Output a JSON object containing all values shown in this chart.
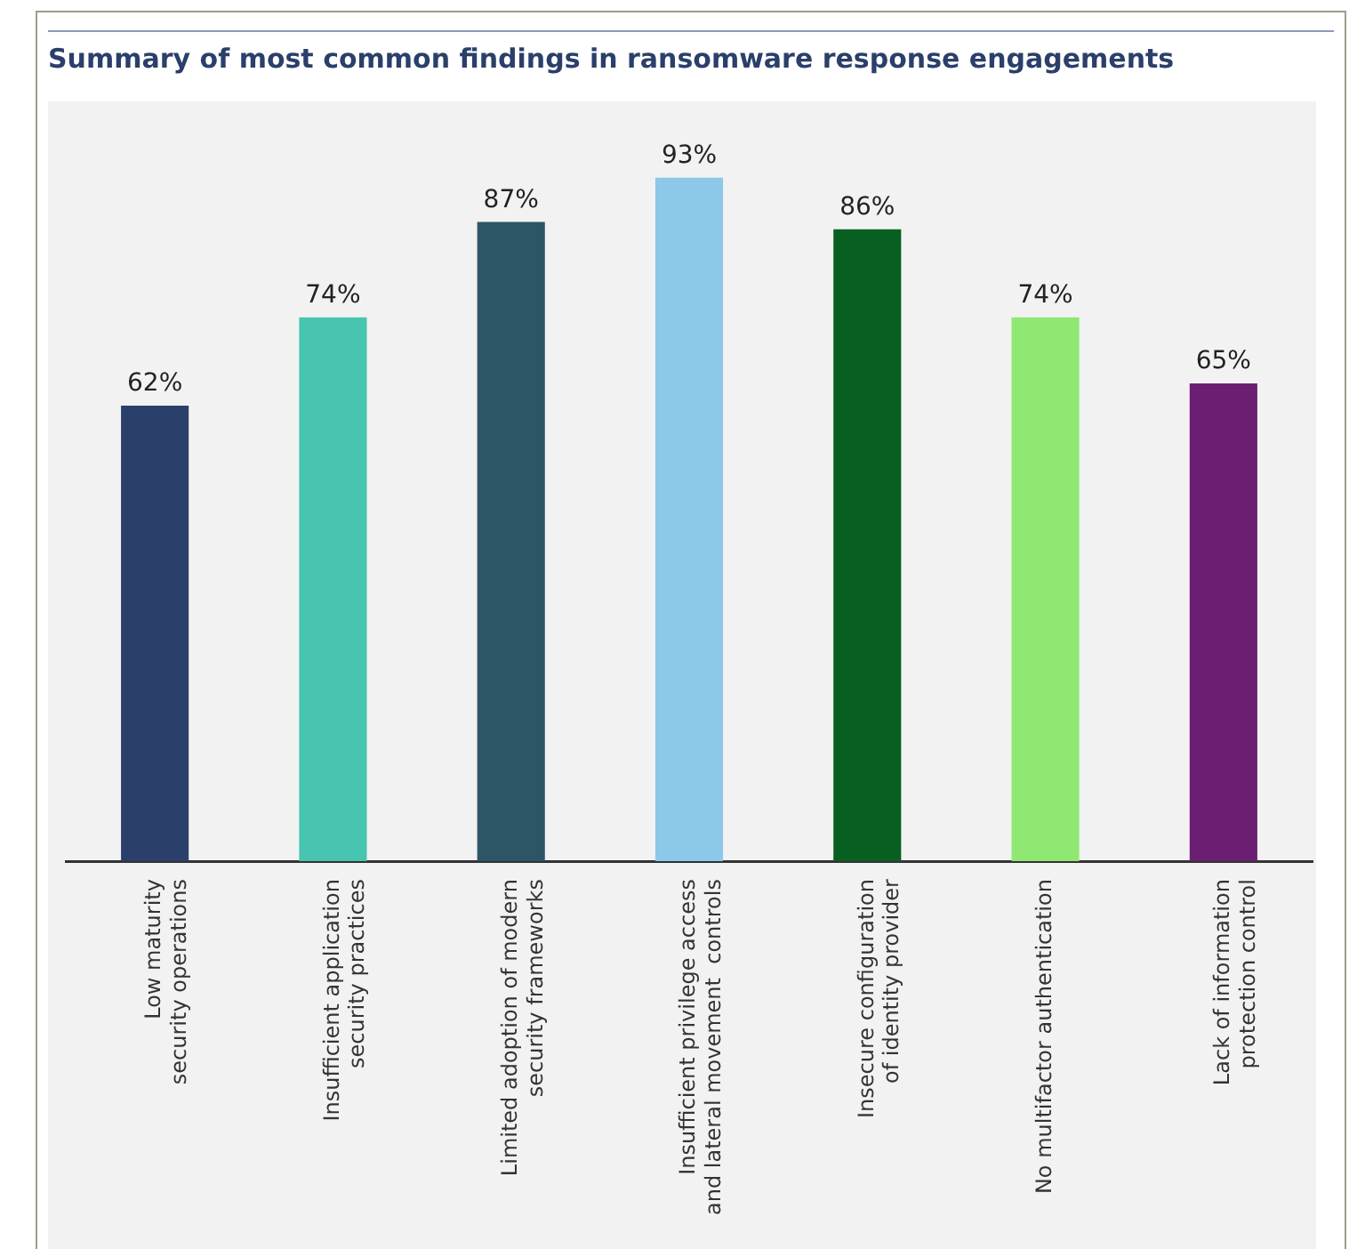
{
  "chart_data": {
    "type": "bar",
    "title": "Summary of most common findings in ransomware response engagements",
    "categories": [
      "Low maturity\nsecurity operations",
      "Insufficient application\nsecurity practices",
      "Limited adoption of modern\nsecurity frameworks",
      "Insufficient privilege access\nand lateral movement  controls",
      "Insecure configuration\nof identity provider",
      "No multifactor authentication",
      "Lack of information\nprotection control"
    ],
    "values": [
      62,
      74,
      87,
      93,
      86,
      74,
      65
    ],
    "colors": [
      "#2b3f6b",
      "#48c5b0",
      "#2c5666",
      "#8cc8e8",
      "#075f22",
      "#8ee872",
      "#6a1f73"
    ],
    "value_labels": [
      "62%",
      "74%",
      "87%",
      "93%",
      "86%",
      "74%",
      "65%"
    ],
    "tick_labels": "x",
    "grid": false,
    "legend": false
  }
}
